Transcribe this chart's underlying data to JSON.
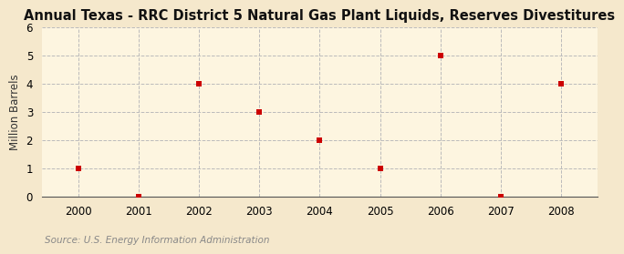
{
  "title": "Annual Texas - RRC District 5 Natural Gas Plant Liquids, Reserves Divestitures",
  "ylabel": "Million Barrels",
  "source": "Source: U.S. Energy Information Administration",
  "background_color": "#f5e8cc",
  "plot_bg_color": "#fdf5e0",
  "x_values": [
    2000,
    2001,
    2002,
    2003,
    2004,
    2005,
    2006,
    2007,
    2008
  ],
  "y_values": [
    1,
    0,
    4,
    3,
    2,
    1,
    5,
    0,
    4
  ],
  "marker_color": "#cc0000",
  "marker_size": 5,
  "xlim": [
    1999.4,
    2008.6
  ],
  "ylim": [
    0,
    6
  ],
  "yticks": [
    0,
    1,
    2,
    3,
    4,
    5,
    6
  ],
  "xticks": [
    2000,
    2001,
    2002,
    2003,
    2004,
    2005,
    2006,
    2007,
    2008
  ],
  "grid_color": "#bbbbbb",
  "grid_linestyle": "--",
  "title_fontsize": 10.5,
  "label_fontsize": 8.5,
  "tick_fontsize": 8.5,
  "source_fontsize": 7.5,
  "source_color": "#888888"
}
